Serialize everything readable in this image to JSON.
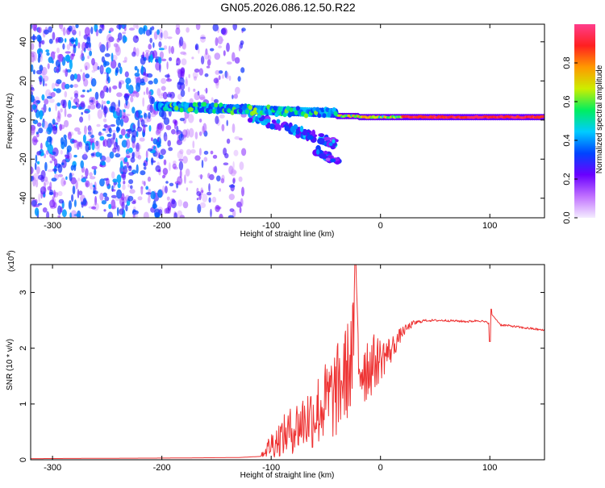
{
  "figure_title": "GN05.2026.086.12.50.R22",
  "chart_data": [
    {
      "type": "heatmap",
      "title": "GN05.2026.086.12.50.R22",
      "xlabel": "Height of straight line (km)",
      "ylabel": "Frequency (Hz)",
      "xlim": [
        -320,
        150
      ],
      "ylim": [
        -50,
        49
      ],
      "x_ticks": [
        -300,
        -200,
        -100,
        0,
        100
      ],
      "x_tick_labels": [
        "-300",
        "-200",
        "-100",
        "0",
        "100"
      ],
      "y_ticks": [
        -40,
        -20,
        0,
        20,
        40
      ],
      "y_tick_labels": [
        "-40",
        "-20",
        "0",
        "20",
        "40"
      ],
      "colorbar": {
        "label": "Normalized spectral amplitude",
        "range": [
          0,
          1
        ],
        "ticks": [
          0,
          0.2,
          0.4,
          0.6,
          0.8
        ],
        "tick_labels": [
          "0.0",
          "0.2",
          "0.4",
          "0.6",
          "0.8"
        ],
        "colors": [
          "#f4ecff",
          "#c070ff",
          "#6a00ff",
          "#0044ff",
          "#00ccff",
          "#00ee60",
          "#ccee00",
          "#ff9900",
          "#ff2020",
          "#ff3d8b"
        ]
      },
      "features": [
        {
          "name": "main-tone",
          "x": [
            -200,
            150
          ],
          "freq": [
            7,
            1.5
          ],
          "amplitude": 0.9
        },
        {
          "name": "branch-1",
          "x": [
            -120,
            -40
          ],
          "freq": [
            2,
            -12
          ],
          "amplitude": 0.4
        },
        {
          "name": "branch-2",
          "x": [
            -60,
            -35
          ],
          "freq": [
            -15,
            -23
          ],
          "amplitude": 0.35
        },
        {
          "name": "noise-region",
          "x": [
            -320,
            -125
          ],
          "freq": [
            -50,
            49
          ],
          "amplitude": 0.2
        }
      ]
    },
    {
      "type": "line",
      "xlabel": "Height of straight line (km)",
      "ylabel": "SNR (10 * v/v)",
      "y_multiplier": "(x10",
      "y_multiplier_exp": "4",
      "y_multiplier_close": ")",
      "xlim": [
        -320,
        150
      ],
      "ylim": [
        0,
        3.5
      ],
      "x_ticks": [
        -300,
        -200,
        -100,
        0,
        100
      ],
      "x_tick_labels": [
        "-300",
        "-200",
        "-100",
        "0",
        "100"
      ],
      "y_ticks": [
        0,
        1,
        2,
        3
      ],
      "y_tick_labels": [
        "0",
        "1",
        "2",
        "3"
      ],
      "series": [
        {
          "name": "SNR",
          "color": "#ee3333",
          "x": [
            -320,
            -200,
            -130,
            -110,
            -100,
            -90,
            -80,
            -70,
            -60,
            -50,
            -40,
            -30,
            -25,
            -23,
            -20,
            -10,
            0,
            10,
            20,
            30,
            40,
            60,
            80,
            90,
            100,
            102,
            110,
            120,
            130,
            140,
            150
          ],
          "y": [
            0.02,
            0.03,
            0.04,
            0.06,
            0.3,
            0.45,
            0.6,
            0.75,
            0.9,
            1.1,
            1.3,
            1.7,
            2.0,
            3.5,
            1.8,
            1.75,
            1.85,
            2.0,
            2.3,
            2.45,
            2.5,
            2.5,
            2.48,
            2.5,
            2.45,
            2.6,
            2.42,
            2.4,
            2.37,
            2.35,
            2.32
          ],
          "noise_amplitude": [
            0,
            0,
            0,
            0,
            0.25,
            0.35,
            0.45,
            0.55,
            0.65,
            0.75,
            0.85,
            0.9,
            1.0,
            0,
            0.9,
            0.6,
            0.4,
            0.25,
            0.1,
            0.05,
            0.02,
            0.02,
            0.02,
            0.02,
            0.02,
            0,
            0.02,
            0.02,
            0.02,
            0.02,
            0.02
          ]
        }
      ]
    }
  ]
}
